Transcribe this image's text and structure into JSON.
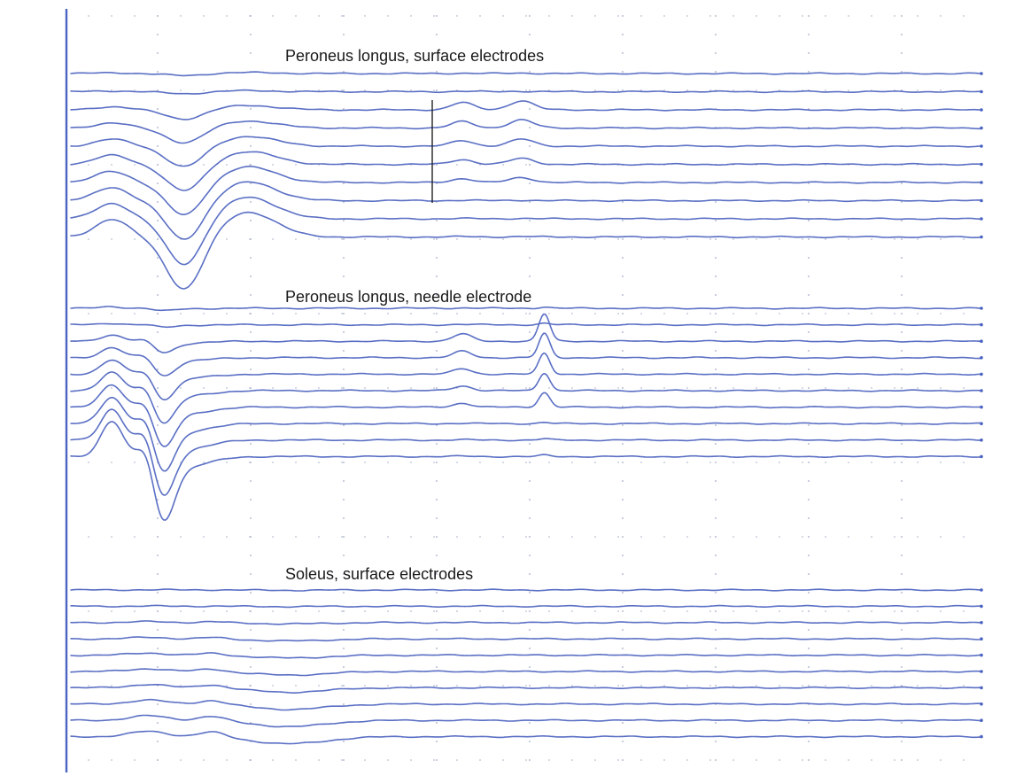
{
  "chart_data": {
    "type": "line",
    "grid": true,
    "panels": [
      {
        "title": "Peroneus longus, surface electrodes",
        "trace_count": 10,
        "marker_present": true,
        "components": [
          {
            "center": 0.045,
            "width": 0.018,
            "amplitude": 20
          },
          {
            "center": 0.125,
            "width": 0.02,
            "amplitude": -60
          },
          {
            "center": 0.195,
            "width": 0.03,
            "amplitude": 28
          },
          {
            "center": 0.43,
            "width": 0.012,
            "amplitude": 8
          },
          {
            "center": 0.495,
            "width": 0.013,
            "amplitude": 10
          }
        ]
      },
      {
        "title": "Peroneus longus, needle electrode",
        "trace_count": 10,
        "marker_present": false,
        "components": [
          {
            "center": 0.045,
            "width": 0.012,
            "amplitude": 40
          },
          {
            "center": 0.085,
            "width": 0.01,
            "amplitude": 45
          },
          {
            "center": 0.098,
            "width": 0.014,
            "amplitude": -80
          },
          {
            "center": 0.13,
            "width": 0.025,
            "amplitude": -10
          },
          {
            "center": 0.43,
            "width": 0.01,
            "amplitude": 8
          },
          {
            "center": 0.52,
            "width": 0.006,
            "amplitude": 30
          }
        ]
      },
      {
        "title": "Soleus, surface electrodes",
        "trace_count": 10,
        "marker_present": false,
        "components": [
          {
            "center": 0.085,
            "width": 0.02,
            "amplitude": 6
          },
          {
            "center": 0.155,
            "width": 0.014,
            "amplitude": 6
          },
          {
            "center": 0.24,
            "width": 0.04,
            "amplitude": -8
          }
        ]
      }
    ]
  }
}
